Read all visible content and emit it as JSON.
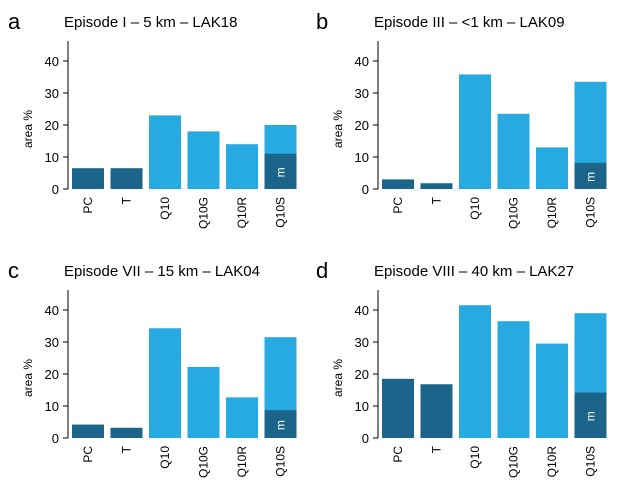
{
  "colors": {
    "dark": "#1a6589",
    "light": "#27aae1",
    "axis": "#000000",
    "mlabel": "#ffffff"
  },
  "chart_data": [
    {
      "type": "bar",
      "panel_letter": "a",
      "title": "Episode I – 5 km – LAK18",
      "ylabel": "area %",
      "ylim": [
        0,
        45
      ],
      "yticks": [
        "0",
        "10",
        "20",
        "30",
        "40"
      ],
      "categories": [
        "PC",
        "T",
        "Q10",
        "Q10G",
        "Q10R",
        "Q10S"
      ],
      "values": [
        6.5,
        6.5,
        23,
        18,
        14,
        20
      ],
      "stacked_m_value": 11,
      "m_label": "m",
      "bar_colors": [
        "dark",
        "dark",
        "light",
        "light",
        "light",
        "light"
      ]
    },
    {
      "type": "bar",
      "panel_letter": "b",
      "title": "Episode III – <1 km – LAK09",
      "ylabel": "area %",
      "ylim": [
        0,
        45
      ],
      "yticks": [
        "0",
        "10",
        "20",
        "30",
        "40"
      ],
      "categories": [
        "PC",
        "T",
        "Q10",
        "Q10G",
        "Q10R",
        "Q10S"
      ],
      "values": [
        3,
        1.8,
        35.8,
        23.5,
        13,
        33.5
      ],
      "stacked_m_value": 8.2,
      "m_label": "m",
      "bar_colors": [
        "dark",
        "dark",
        "light",
        "light",
        "light",
        "light"
      ]
    },
    {
      "type": "bar",
      "panel_letter": "c",
      "title": "Episode VII – 15 km – LAK04",
      "ylabel": "area %",
      "ylim": [
        0,
        45
      ],
      "yticks": [
        "0",
        "10",
        "20",
        "30",
        "40"
      ],
      "categories": [
        "PC",
        "T",
        "Q10",
        "Q10G",
        "Q10R",
        "Q10S"
      ],
      "values": [
        4.2,
        3.2,
        34.3,
        22.2,
        12.7,
        31.5
      ],
      "stacked_m_value": 8.7,
      "m_label": "m",
      "bar_colors": [
        "dark",
        "dark",
        "light",
        "light",
        "light",
        "light"
      ]
    },
    {
      "type": "bar",
      "panel_letter": "d",
      "title": "Episode VIII – 40 km – LAK27",
      "ylabel": "area %",
      "ylim": [
        0,
        45
      ],
      "yticks": [
        "0",
        "10",
        "20",
        "30",
        "40"
      ],
      "categories": [
        "PC",
        "T",
        "Q10",
        "Q10G",
        "Q10R",
        "Q10S"
      ],
      "values": [
        18.5,
        16.8,
        41.5,
        36.5,
        29.5,
        39
      ],
      "stacked_m_value": 14.2,
      "m_label": "m",
      "bar_colors": [
        "dark",
        "dark",
        "light",
        "light",
        "light",
        "light"
      ]
    }
  ]
}
